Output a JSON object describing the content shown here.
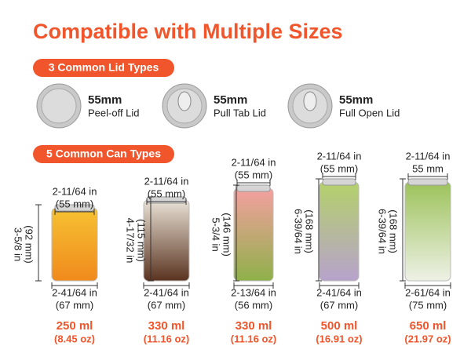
{
  "title": "Compatible with Multiple Sizes",
  "lid_section": {
    "heading": "3 Common Lid Types",
    "lids": [
      {
        "size": "55mm",
        "name": "Peel-off Lid"
      },
      {
        "size": "55mm",
        "name": "Pull Tab Lid"
      },
      {
        "size": "55mm",
        "name": "Full Open Lid"
      }
    ]
  },
  "can_section": {
    "heading": "5 Common Can Types",
    "cans": [
      {
        "top": [
          "2-11/64 in",
          "(55 mm)"
        ],
        "height": [
          "3-5/8 in",
          "(92 mm)"
        ],
        "bottom": [
          "2-41/64 in",
          "(67 mm)"
        ],
        "volume": "250 ml",
        "oz": "(8.45 oz)"
      },
      {
        "top": [
          "2-11/64 in",
          "(55 mm)"
        ],
        "height": [
          "4-17/32 in",
          "(115 mm)"
        ],
        "bottom": [
          "2-41/64 in",
          "(67 mm)"
        ],
        "volume": "330 ml",
        "oz": "(11.16 oz)"
      },
      {
        "top": [
          "2-11/64 in",
          "(55 mm)"
        ],
        "height": [
          "5-3/4 in",
          "(146 mm)"
        ],
        "bottom": [
          "2-13/64 in",
          "(56 mm)"
        ],
        "volume": "330 ml",
        "oz": "(11.16 oz)"
      },
      {
        "top": [
          "2-11/64 in",
          "(55 mm)"
        ],
        "height": [
          "6-39/64 in",
          "(168 mm)"
        ],
        "bottom": [
          "2-41/64 in",
          "(67 mm)"
        ],
        "volume": "500 ml",
        "oz": "(16.91 oz)"
      },
      {
        "top": [
          "2-11/64 in",
          "55 mm"
        ],
        "height": [
          "6-39/64 in",
          "(168 mm)"
        ],
        "bottom": [
          "2-61/64 in",
          "(75 mm)"
        ],
        "volume": "650 ml",
        "oz": "(21.97 oz)"
      }
    ]
  }
}
